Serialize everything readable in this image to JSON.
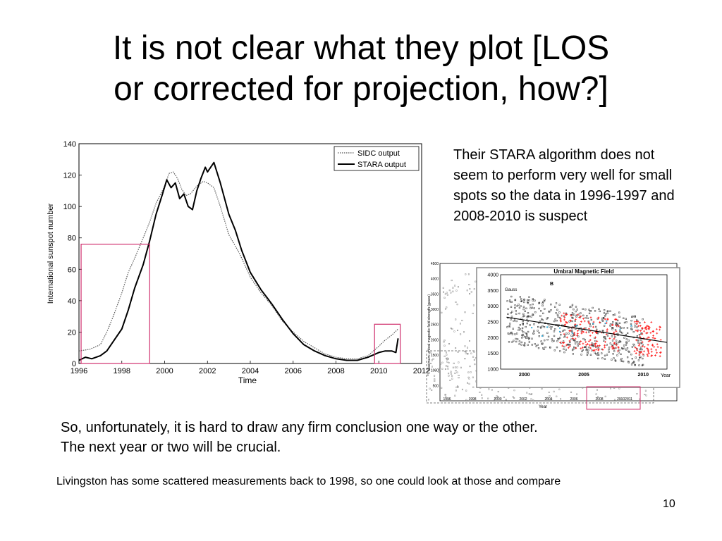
{
  "slide": {
    "title_lines": [
      "It is not clear what they plot [LOS",
      "or corrected for projection, how?]"
    ],
    "side_note": "Their STARA algorithm does not seem to perform very well for small spots so the data in 1996-1997 and 2008-2010 is suspect",
    "conclusion_lines": [
      "So, unfortunately, it is hard to draw any firm conclusion one way or the other.",
      "The next year or two will be crucial."
    ],
    "footnote": "Livingston has some scattered measurements back to 1998, so one could look at those and compare",
    "page_number": "10"
  },
  "colors": {
    "highlight_box": "#d0306e",
    "stara": "#000000",
    "sidc": "#555555",
    "red_points": "#ff2020",
    "trend_line": "#2aa8d8"
  },
  "chart_data": [
    {
      "type": "line",
      "xlabel": "Time",
      "ylabel": "International sunspot number",
      "xlim": [
        1996,
        2012
      ],
      "ylim": [
        0,
        140
      ],
      "x_ticks": [
        1996,
        1998,
        2000,
        2002,
        2004,
        2006,
        2008,
        2010,
        2012
      ],
      "y_ticks": [
        0,
        20,
        40,
        60,
        80,
        100,
        120,
        140
      ],
      "legend_position": "top-right",
      "series": [
        {
          "name": "SIDC output",
          "style": "dotted",
          "x": [
            1996.0,
            1996.5,
            1997.0,
            1997.3,
            1997.6,
            1998.0,
            1998.3,
            1998.6,
            1999.0,
            1999.3,
            1999.6,
            2000.0,
            2000.2,
            2000.4,
            2000.6,
            2000.8,
            2001.0,
            2001.2,
            2001.5,
            2001.8,
            2002.0,
            2002.3,
            2002.6,
            2003.0,
            2003.5,
            2004.0,
            2004.5,
            2005.0,
            2005.5,
            2006.0,
            2006.5,
            2007.0,
            2007.5,
            2008.0,
            2008.5,
            2009.0,
            2009.5,
            2010.0,
            2010.3,
            2010.6,
            2010.9
          ],
          "y": [
            8,
            9,
            12,
            20,
            30,
            45,
            58,
            67,
            80,
            90,
            102,
            113,
            121,
            122,
            118,
            111,
            107,
            108,
            113,
            116,
            115,
            112,
            100,
            82,
            70,
            55,
            45,
            37,
            27,
            20,
            14,
            10,
            6,
            4,
            3,
            3,
            5,
            11,
            15,
            18,
            22
          ]
        },
        {
          "name": "STARA output",
          "style": "solid",
          "x": [
            1996.0,
            1996.3,
            1996.6,
            1997.0,
            1997.3,
            1997.6,
            1998.0,
            1998.3,
            1998.6,
            1999.0,
            1999.3,
            1999.6,
            1999.9,
            2000.1,
            2000.3,
            2000.5,
            2000.7,
            2000.9,
            2001.1,
            2001.3,
            2001.5,
            2001.7,
            2001.9,
            2002.0,
            2002.3,
            2002.6,
            2003.0,
            2003.3,
            2003.6,
            2004.0,
            2004.5,
            2005.0,
            2005.5,
            2006.0,
            2006.5,
            2007.0,
            2007.5,
            2008.0,
            2008.5,
            2009.0,
            2009.5,
            2010.0,
            2010.3,
            2010.6,
            2010.8,
            2010.9
          ],
          "y": [
            2,
            4,
            3,
            5,
            8,
            14,
            22,
            34,
            48,
            63,
            78,
            95,
            108,
            117,
            112,
            115,
            105,
            108,
            100,
            98,
            110,
            118,
            125,
            122,
            128,
            115,
            95,
            85,
            72,
            58,
            47,
            38,
            28,
            19,
            12,
            8,
            5,
            3,
            2,
            2,
            4,
            7,
            8,
            8,
            7,
            16
          ]
        }
      ],
      "highlight_regions": [
        {
          "x": [
            1996.1,
            1999.3
          ],
          "y": [
            0,
            76
          ]
        },
        {
          "x": [
            2009.8,
            2011.0
          ],
          "y": [
            0,
            25
          ]
        }
      ]
    },
    {
      "type": "scatter",
      "title": "Umbral Magnetic Field",
      "panel_label": "B",
      "unit_label": "Gauss",
      "xlabel": "Year",
      "ylabel": "Maximum umbral magnetic field strength (gauss)",
      "outer_xlim": [
        1996,
        2012
      ],
      "outer_ylim": [
        0,
        4500
      ],
      "outer_x_ticks": [
        "1996",
        "1998",
        "2000",
        "2002",
        "2004",
        "2006",
        "2008",
        "20102011"
      ],
      "outer_y_ticks": [
        500,
        1000,
        1500,
        2000,
        2500,
        3000,
        3500,
        4000,
        4500
      ],
      "inset_xlim": [
        1998,
        2012
      ],
      "inset_ylim": [
        1000,
        4000
      ],
      "inset_x_ticks": [
        2000,
        2005,
        2010
      ],
      "inset_y_ticks": [
        1000,
        1500,
        2000,
        2500,
        3000,
        3500,
        4000
      ],
      "trend_line": {
        "x": [
          1998.5,
          2012
        ],
        "y": [
          2650,
          1850
        ]
      }
    }
  ]
}
